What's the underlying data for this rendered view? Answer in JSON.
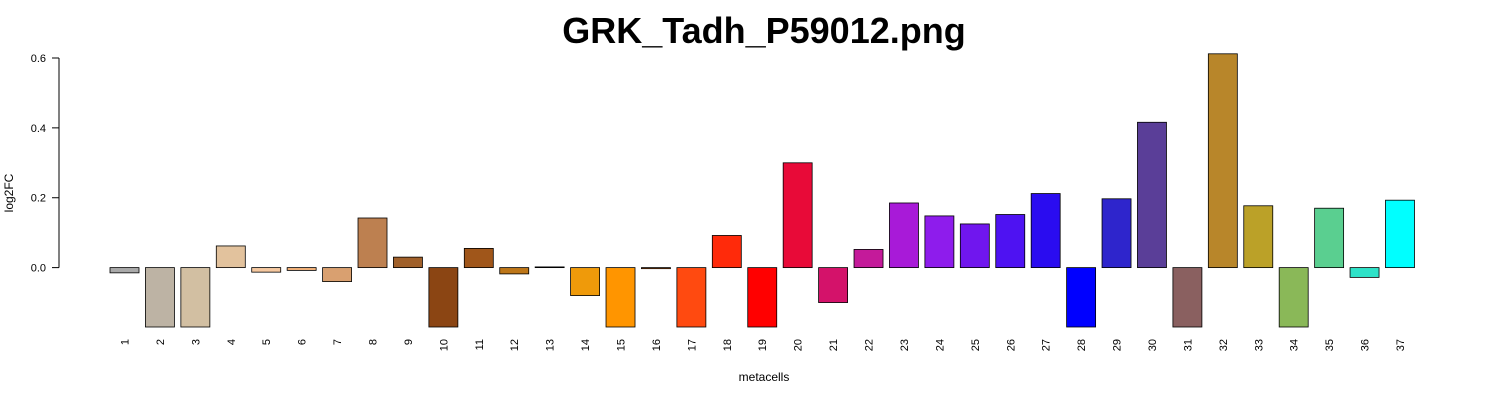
{
  "chart_data": {
    "type": "bar",
    "title": "GRK_Tadh_P59012.png",
    "xlabel": "metacells",
    "ylabel": "log2FC",
    "ylim": [
      -0.17,
      0.6
    ],
    "yticks": [
      0.0,
      0.2,
      0.4,
      0.6
    ],
    "ytick_labels": [
      "0.0",
      "0.2",
      "0.4",
      "0.6"
    ],
    "grid": false,
    "categories": [
      "1",
      "2",
      "3",
      "4",
      "5",
      "6",
      "7",
      "8",
      "9",
      "10",
      "11",
      "12",
      "13",
      "14",
      "15",
      "16",
      "17",
      "18",
      "19",
      "20",
      "21",
      "22",
      "23",
      "24",
      "25",
      "26",
      "27",
      "28",
      "29",
      "30",
      "31",
      "32",
      "33",
      "34",
      "35",
      "36",
      "37"
    ],
    "values": [
      -0.015,
      -0.17,
      -0.17,
      0.062,
      -0.013,
      -0.008,
      -0.04,
      0.142,
      0.03,
      -0.17,
      0.055,
      -0.018,
      0.002,
      -0.08,
      -0.17,
      -0.003,
      -0.17,
      0.092,
      -0.17,
      0.3,
      -0.1,
      0.052,
      0.185,
      0.148,
      0.125,
      0.152,
      0.212,
      -0.17,
      0.197,
      0.416,
      -0.17,
      0.612,
      0.177,
      -0.17,
      0.17,
      -0.028,
      0.193
    ],
    "colors": [
      "#A9A9A9",
      "#BDB3A4",
      "#D2BFA2",
      "#E2C29D",
      "#F5C8A0",
      "#F0B078",
      "#D9A070",
      "#BD8050",
      "#A0602A",
      "#8B4513",
      "#A0561A",
      "#BD7618",
      "#D08A15",
      "#EF9A0A",
      "#FF9500",
      "#FF7A10",
      "#FF4A10",
      "#FF2A0A",
      "#FF0000",
      "#E80A38",
      "#D4126A",
      "#C41A9A",
      "#A81AD8",
      "#8E1CEC",
      "#7016EE",
      "#4E12F2",
      "#2A0CF0",
      "#0000FF",
      "#2E25CC",
      "#5A3E98",
      "#8A6060",
      "#B8862A",
      "#BBA128",
      "#8AB858",
      "#5ACF90",
      "#2EE2C8",
      "#00FFFF"
    ]
  }
}
